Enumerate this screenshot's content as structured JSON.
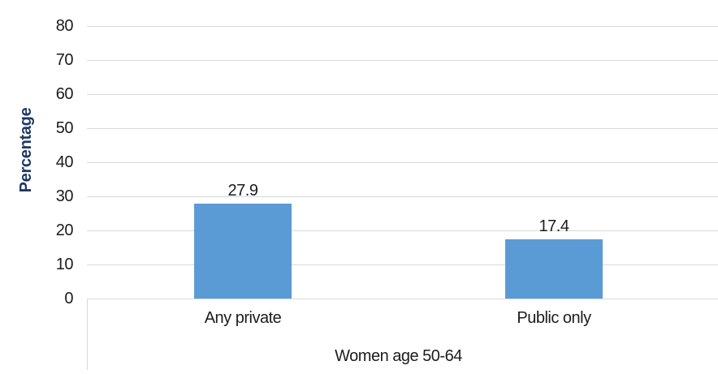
{
  "chart_data": {
    "type": "bar",
    "title": "",
    "categories": [
      "Any private",
      "Public only"
    ],
    "values": [
      27.9,
      17.4
    ],
    "data_labels": [
      "27.9",
      "17.4"
    ],
    "xlabel": "Women age 50-64",
    "ylabel": "Percentage",
    "ylim": [
      0,
      80
    ],
    "yticks": [
      0,
      10,
      20,
      30,
      40,
      50,
      60,
      70,
      80
    ],
    "grid": "horizontal",
    "legend": "none",
    "bar_color": "#5b9bd5",
    "gridline_color": "#d9d9d9",
    "axis_line_color": "#d9d9d9",
    "ylabel_color": "#1f3864",
    "text_color": "#1c1c1c"
  }
}
